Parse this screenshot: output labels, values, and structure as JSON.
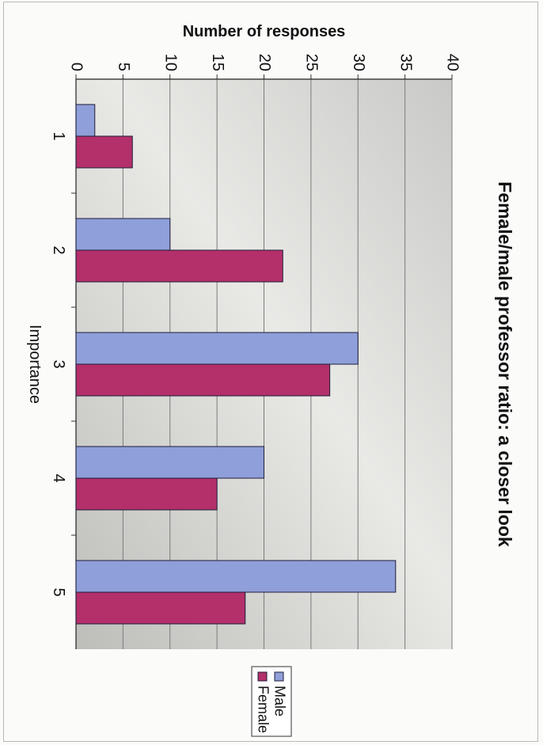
{
  "chart_data": {
    "type": "bar",
    "orientation": "horizontal",
    "title": "Female/male professor ratio: a closer look",
    "xlabel": "Importance",
    "ylabel": "Number of responses",
    "categories": [
      "1",
      "2",
      "3",
      "4",
      "5"
    ],
    "series": [
      {
        "name": "Male",
        "values": [
          2,
          10,
          30,
          20,
          34
        ],
        "color": "#8f9fd9"
      },
      {
        "name": "Female",
        "values": [
          6,
          22,
          27,
          15,
          18
        ],
        "color": "#b3306a"
      }
    ],
    "ylim": [
      0,
      40
    ],
    "yticks": [
      "0",
      "5",
      "10",
      "15",
      "20",
      "25",
      "30",
      "35",
      "40"
    ],
    "grid": true,
    "legend": "bottom-right",
    "rotation": "90"
  }
}
